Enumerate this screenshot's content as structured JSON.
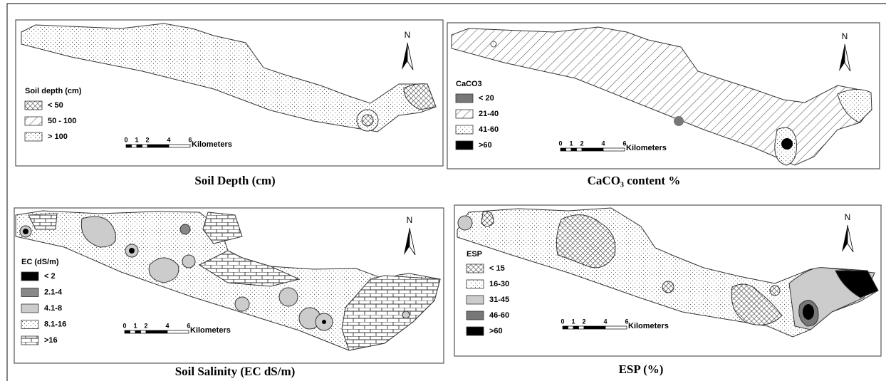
{
  "panels": [
    {
      "legend": {
        "title": "Soil depth (cm)",
        "items": [
          "< 50",
          "50 - 100",
          "> 100"
        ]
      },
      "north": "N",
      "scale": {
        "ticks": [
          "0",
          "1",
          "2",
          "4",
          "6"
        ],
        "unit": "Kilometers"
      },
      "caption": "Soil Depth  (cm)"
    },
    {
      "legend": {
        "title": "CaCO3",
        "items": [
          "< 20",
          "21-40",
          "41-60",
          ">60"
        ]
      },
      "north": "N",
      "scale": {
        "ticks": [
          "0",
          "1",
          "2",
          "4",
          "6"
        ],
        "unit": "Kilometers"
      },
      "caption": "CaCO₃ content  %"
    },
    {
      "legend": {
        "title": "EC (dS/m)",
        "items": [
          "< 2",
          "2.1-4",
          "4.1-8",
          "8.1-16",
          ">16"
        ]
      },
      "north": "N",
      "scale": {
        "ticks": [
          "0",
          "1",
          "2",
          "4",
          "6"
        ],
        "unit": "Kilometers"
      },
      "caption": "Soil Salinity (EC dS/m)"
    },
    {
      "legend": {
        "title": "ESP",
        "items": [
          "< 15",
          "16-30",
          "31-45",
          "46-60",
          ">60"
        ]
      },
      "north": "N",
      "scale": {
        "ticks": [
          "0",
          "1",
          "2",
          "4",
          "6"
        ],
        "unit": "Kilometers"
      },
      "caption": "ESP (%)"
    }
  ]
}
